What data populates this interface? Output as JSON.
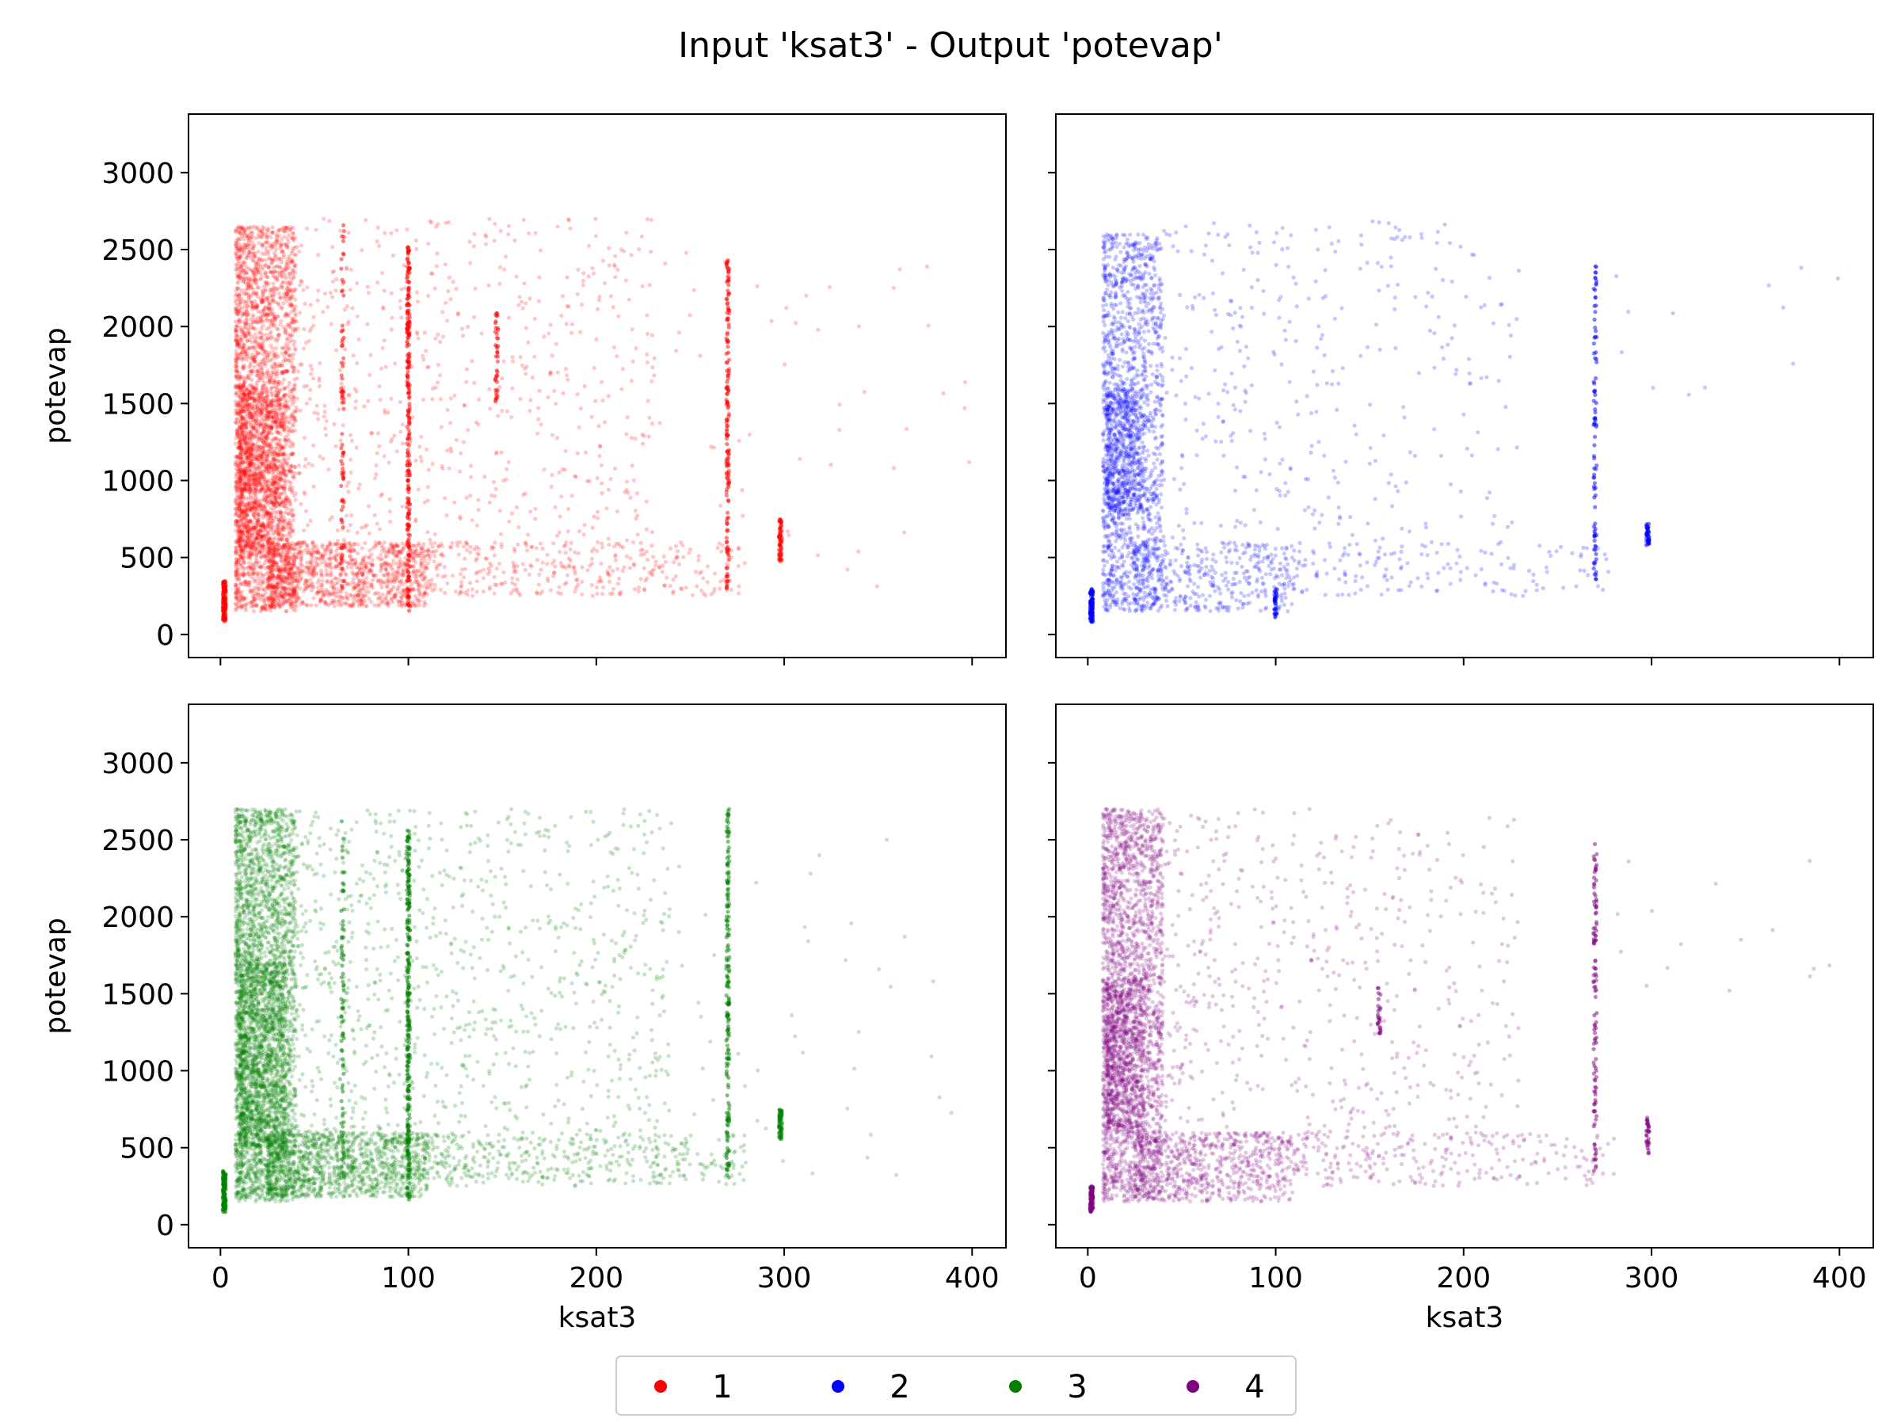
{
  "figure": {
    "title": "Input 'ksat3' - Output 'potevap'"
  },
  "chart_data": [
    {
      "type": "scatter",
      "panel": "top-left",
      "series_name": "1",
      "color": "#ff0000",
      "xlabel": "",
      "ylabel": "potevap",
      "xlim": [
        -17,
        418
      ],
      "ylim": [
        -150,
        3380
      ],
      "x_ticks": [
        0,
        100,
        200,
        300,
        400
      ],
      "y_ticks": [
        0,
        500,
        1000,
        1500,
        2000,
        2500,
        3000
      ],
      "show_x_tick_labels": false,
      "show_y_tick_labels": true,
      "grid": false,
      "clusters": [
        {
          "x": [
            8,
            40
          ],
          "y": [
            150,
            2650
          ],
          "n": 2600
        },
        {
          "x": [
            10,
            35
          ],
          "y": [
            500,
            1600
          ],
          "n": 900
        },
        {
          "x": [
            25,
            110
          ],
          "y": [
            180,
            600
          ],
          "n": 1000
        },
        {
          "x": [
            40,
            230
          ],
          "y": [
            250,
            2700
          ],
          "n": 700
        },
        {
          "x": [
            110,
            280
          ],
          "y": [
            250,
            600
          ],
          "n": 300
        },
        {
          "x": [
            200,
            400
          ],
          "y": [
            300,
            2500
          ],
          "n": 60
        }
      ],
      "stripes": [
        {
          "x": 2,
          "y": [
            80,
            350
          ],
          "n": 120
        },
        {
          "x": 100,
          "y": [
            150,
            2550
          ],
          "n": 250
        },
        {
          "x": 270,
          "y": [
            300,
            2450
          ],
          "n": 160
        },
        {
          "x": 298,
          "y": [
            450,
            750
          ],
          "n": 60
        },
        {
          "x": 65,
          "y": [
            300,
            2700
          ],
          "n": 80
        },
        {
          "x": 147,
          "y": [
            1500,
            2100
          ],
          "n": 40
        }
      ]
    },
    {
      "type": "scatter",
      "panel": "top-right",
      "series_name": "2",
      "color": "#0000ff",
      "xlabel": "",
      "ylabel": "",
      "xlim": [
        -17,
        418
      ],
      "ylim": [
        -150,
        3380
      ],
      "x_ticks": [
        0,
        100,
        200,
        300,
        400
      ],
      "y_ticks": [
        0,
        500,
        1000,
        1500,
        2000,
        2500,
        3000
      ],
      "show_x_tick_labels": false,
      "show_y_tick_labels": false,
      "grid": false,
      "clusters": [
        {
          "x": [
            8,
            40
          ],
          "y": [
            150,
            2600
          ],
          "n": 1500
        },
        {
          "x": [
            10,
            30
          ],
          "y": [
            800,
            1600
          ],
          "n": 500
        },
        {
          "x": [
            25,
            110
          ],
          "y": [
            150,
            600
          ],
          "n": 400
        },
        {
          "x": [
            40,
            230
          ],
          "y": [
            250,
            2700
          ],
          "n": 400
        },
        {
          "x": [
            110,
            280
          ],
          "y": [
            250,
            600
          ],
          "n": 120
        },
        {
          "x": [
            280,
            400
          ],
          "y": [
            1500,
            2500
          ],
          "n": 12
        }
      ],
      "stripes": [
        {
          "x": 2,
          "y": [
            80,
            300
          ],
          "n": 100
        },
        {
          "x": 270,
          "y": [
            350,
            2400
          ],
          "n": 90
        },
        {
          "x": 298,
          "y": [
            580,
            720
          ],
          "n": 40
        },
        {
          "x": 100,
          "y": [
            100,
            300
          ],
          "n": 30
        }
      ]
    },
    {
      "type": "scatter",
      "panel": "bottom-left",
      "series_name": "3",
      "color": "#008000",
      "xlabel": "ksat3",
      "ylabel": "potevap",
      "xlim": [
        -17,
        418
      ],
      "ylim": [
        -150,
        3380
      ],
      "x_ticks": [
        0,
        100,
        200,
        300,
        400
      ],
      "y_ticks": [
        0,
        500,
        1000,
        1500,
        2000,
        2500,
        3000
      ],
      "show_x_tick_labels": true,
      "show_y_tick_labels": true,
      "grid": false,
      "clusters": [
        {
          "x": [
            8,
            40
          ],
          "y": [
            150,
            2700
          ],
          "n": 3000
        },
        {
          "x": [
            10,
            35
          ],
          "y": [
            500,
            1700
          ],
          "n": 1000
        },
        {
          "x": [
            25,
            110
          ],
          "y": [
            180,
            600
          ],
          "n": 1200
        },
        {
          "x": [
            40,
            240
          ],
          "y": [
            250,
            2700
          ],
          "n": 1000
        },
        {
          "x": [
            110,
            280
          ],
          "y": [
            250,
            600
          ],
          "n": 350
        },
        {
          "x": [
            200,
            400
          ],
          "y": [
            300,
            2600
          ],
          "n": 70
        }
      ],
      "stripes": [
        {
          "x": 2,
          "y": [
            80,
            350
          ],
          "n": 120
        },
        {
          "x": 100,
          "y": [
            150,
            2600
          ],
          "n": 280
        },
        {
          "x": 270,
          "y": [
            300,
            2700
          ],
          "n": 180
        },
        {
          "x": 298,
          "y": [
            550,
            750
          ],
          "n": 60
        },
        {
          "x": 65,
          "y": [
            300,
            2650
          ],
          "n": 80
        }
      ]
    },
    {
      "type": "scatter",
      "panel": "bottom-right",
      "series_name": "4",
      "color": "#800080",
      "xlabel": "ksat3",
      "ylabel": "",
      "xlim": [
        -17,
        418
      ],
      "ylim": [
        -150,
        3380
      ],
      "x_ticks": [
        0,
        100,
        200,
        300,
        400
      ],
      "y_ticks": [
        0,
        500,
        1000,
        1500,
        2000,
        2500,
        3000
      ],
      "show_x_tick_labels": true,
      "show_y_tick_labels": false,
      "grid": false,
      "clusters": [
        {
          "x": [
            8,
            40
          ],
          "y": [
            150,
            2700
          ],
          "n": 2200
        },
        {
          "x": [
            10,
            30
          ],
          "y": [
            600,
            1600
          ],
          "n": 700
        },
        {
          "x": [
            25,
            110
          ],
          "y": [
            150,
            600
          ],
          "n": 700
        },
        {
          "x": [
            40,
            230
          ],
          "y": [
            250,
            2700
          ],
          "n": 600
        },
        {
          "x": [
            110,
            280
          ],
          "y": [
            250,
            600
          ],
          "n": 200
        },
        {
          "x": [
            280,
            400
          ],
          "y": [
            1500,
            2500
          ],
          "n": 15
        }
      ],
      "stripes": [
        {
          "x": 2,
          "y": [
            80,
            250
          ],
          "n": 90
        },
        {
          "x": 270,
          "y": [
            300,
            2500
          ],
          "n": 110
        },
        {
          "x": 298,
          "y": [
            450,
            700
          ],
          "n": 30
        },
        {
          "x": 155,
          "y": [
            1200,
            1550
          ],
          "n": 25
        }
      ]
    }
  ],
  "legend": {
    "placement": "bottom-center",
    "entries": [
      {
        "label": "1",
        "color": "#ff0000"
      },
      {
        "label": "2",
        "color": "#0000ff"
      },
      {
        "label": "3",
        "color": "#008000"
      },
      {
        "label": "4",
        "color": "#800080"
      }
    ]
  }
}
